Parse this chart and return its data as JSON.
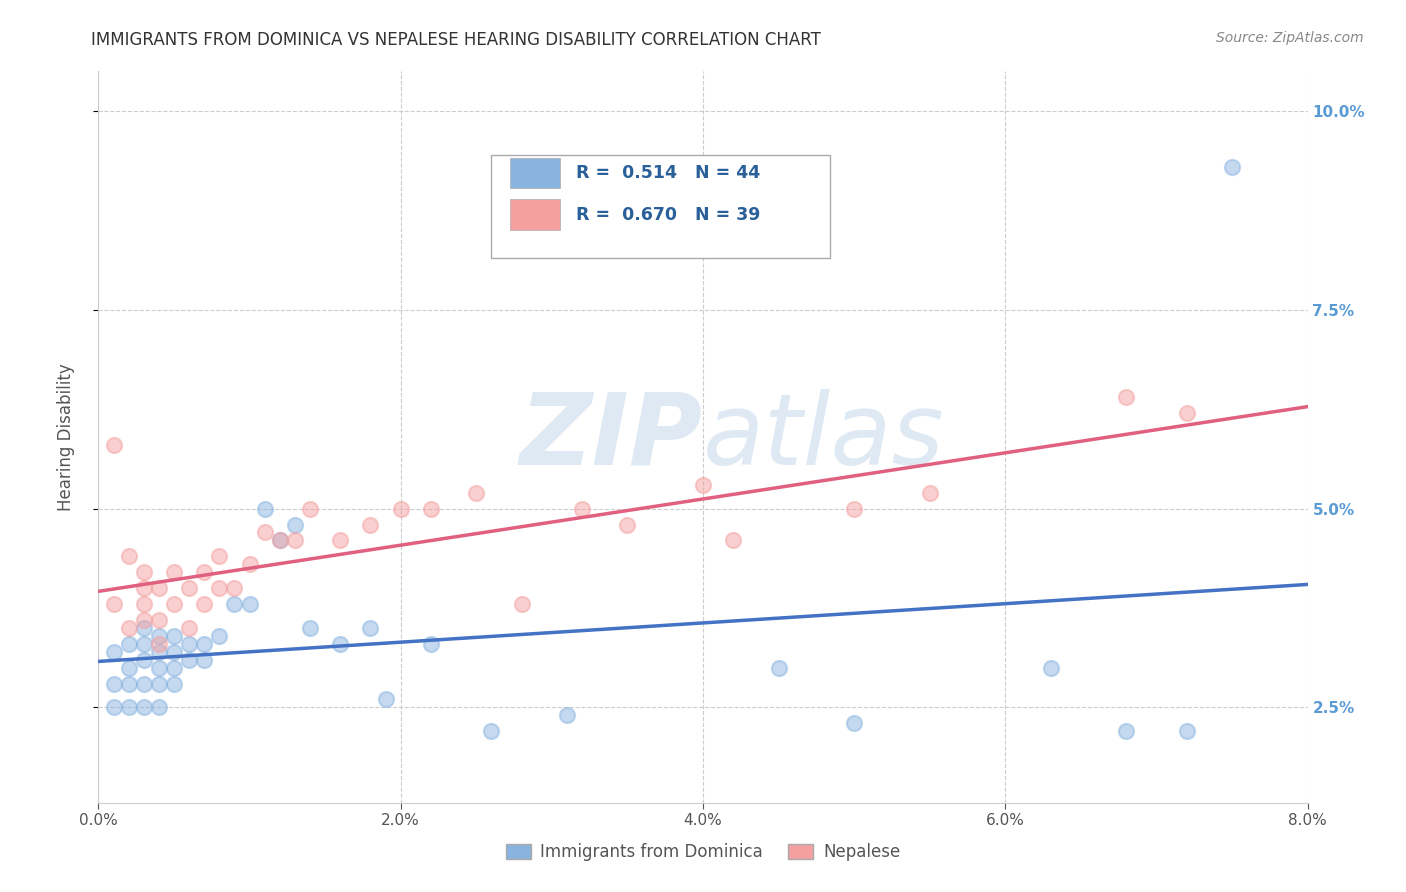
{
  "title": "IMMIGRANTS FROM DOMINICA VS NEPALESE HEARING DISABILITY CORRELATION CHART",
  "source_text": "Source: ZipAtlas.com",
  "ylabel": "Hearing Disability",
  "watermark_zip": "ZIP",
  "watermark_atlas": "atlas",
  "xlim": [
    0.0,
    0.08
  ],
  "ylim": [
    0.013,
    0.105
  ],
  "xticks": [
    0.0,
    0.02,
    0.04,
    0.06,
    0.08
  ],
  "yticks": [
    0.025,
    0.05,
    0.075,
    0.1
  ],
  "xticklabels": [
    "0.0%",
    "2.0%",
    "4.0%",
    "6.0%",
    "8.0%"
  ],
  "yticklabels": [
    "2.5%",
    "5.0%",
    "7.5%",
    "10.0%"
  ],
  "blue_R": 0.514,
  "blue_N": 44,
  "pink_R": 0.67,
  "pink_N": 39,
  "blue_color": "#8ab4e0",
  "pink_color": "#f4a0a0",
  "blue_line_color": "#4472c4",
  "pink_line_color": "#e06080",
  "blue_x": [
    0.001,
    0.001,
    0.001,
    0.002,
    0.002,
    0.002,
    0.002,
    0.003,
    0.003,
    0.003,
    0.003,
    0.003,
    0.004,
    0.004,
    0.004,
    0.004,
    0.004,
    0.005,
    0.005,
    0.005,
    0.005,
    0.006,
    0.006,
    0.007,
    0.007,
    0.008,
    0.009,
    0.01,
    0.011,
    0.012,
    0.013,
    0.014,
    0.016,
    0.018,
    0.019,
    0.022,
    0.026,
    0.031,
    0.045,
    0.05,
    0.063,
    0.068,
    0.072,
    0.075
  ],
  "blue_y": [
    0.032,
    0.028,
    0.025,
    0.033,
    0.03,
    0.028,
    0.025,
    0.035,
    0.033,
    0.031,
    0.028,
    0.025,
    0.034,
    0.032,
    0.03,
    0.028,
    0.025,
    0.034,
    0.032,
    0.03,
    0.028,
    0.033,
    0.031,
    0.033,
    0.031,
    0.034,
    0.038,
    0.038,
    0.05,
    0.046,
    0.048,
    0.035,
    0.033,
    0.035,
    0.026,
    0.033,
    0.022,
    0.024,
    0.03,
    0.023,
    0.03,
    0.022,
    0.022,
    0.093
  ],
  "pink_x": [
    0.001,
    0.001,
    0.002,
    0.002,
    0.003,
    0.003,
    0.003,
    0.003,
    0.004,
    0.004,
    0.004,
    0.005,
    0.005,
    0.006,
    0.006,
    0.007,
    0.007,
    0.008,
    0.008,
    0.009,
    0.01,
    0.011,
    0.012,
    0.013,
    0.014,
    0.016,
    0.018,
    0.02,
    0.022,
    0.025,
    0.028,
    0.032,
    0.035,
    0.04,
    0.042,
    0.05,
    0.055,
    0.068,
    0.072
  ],
  "pink_y": [
    0.038,
    0.058,
    0.035,
    0.044,
    0.036,
    0.038,
    0.04,
    0.042,
    0.033,
    0.036,
    0.04,
    0.038,
    0.042,
    0.035,
    0.04,
    0.038,
    0.042,
    0.04,
    0.044,
    0.04,
    0.043,
    0.047,
    0.046,
    0.046,
    0.05,
    0.046,
    0.048,
    0.05,
    0.05,
    0.052,
    0.038,
    0.05,
    0.048,
    0.053,
    0.046,
    0.05,
    0.052,
    0.064,
    0.062
  ],
  "legend_label_blue": "Immigrants from Dominica",
  "legend_label_pink": "Nepalese",
  "background_color": "#ffffff",
  "grid_color": "#cccccc",
  "title_color": "#333333",
  "right_tick_color": "#5b9bd5"
}
